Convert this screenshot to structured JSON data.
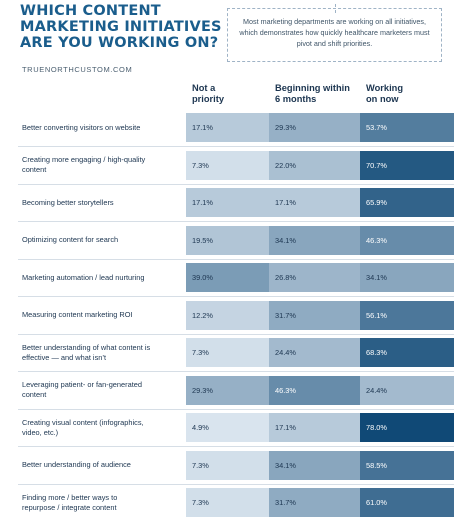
{
  "title_lines": [
    "WHICH CONTENT",
    "MARKETING INITIATIVES",
    "ARE YOU WORKING ON?"
  ],
  "callout": "Most marketing departments are working on all initiatives, which demonstrates how quickly healthcare marketers must pivot and shift priorities.",
  "source": "TRUENORTHCUSTOM.COM",
  "chart_data": {
    "type": "table",
    "columns": [
      {
        "lines": [
          "Not a",
          "priority"
        ]
      },
      {
        "lines": [
          "Beginning within",
          "6 months"
        ]
      },
      {
        "lines": [
          "Working",
          "on now"
        ]
      }
    ],
    "rows": [
      {
        "label": [
          "Better converting visitors on website"
        ],
        "values": [
          17.1,
          29.3,
          53.7
        ]
      },
      {
        "label": [
          "Creating more engaging / high-quality",
          "content"
        ],
        "values": [
          7.3,
          22.0,
          70.7
        ]
      },
      {
        "label": [
          "Becoming better storytellers"
        ],
        "values": [
          17.1,
          17.1,
          65.9
        ]
      },
      {
        "label": [
          "Optimizing content for search"
        ],
        "values": [
          19.5,
          34.1,
          46.3
        ]
      },
      {
        "label": [
          "Marketing automation / lead nurturing"
        ],
        "values": [
          39.0,
          26.8,
          34.1
        ]
      },
      {
        "label": [
          "Measuring content marketing ROI"
        ],
        "values": [
          12.2,
          31.7,
          56.1
        ]
      },
      {
        "label": [
          "Better understanding of what content is",
          "effective — and what isn’t"
        ],
        "values": [
          7.3,
          24.4,
          68.3
        ]
      },
      {
        "label": [
          "Leveraging patient- or fan-generated",
          "content"
        ],
        "values": [
          29.3,
          46.3,
          24.4
        ]
      },
      {
        "label": [
          "Creating visual content (infographics,",
          "video, etc.)"
        ],
        "values": [
          4.9,
          17.1,
          78.0
        ]
      },
      {
        "label": [
          "Better understanding of audience"
        ],
        "values": [
          7.3,
          34.1,
          58.5
        ]
      },
      {
        "label": [
          "Finding more / better ways to",
          "repurpose / integrate content"
        ],
        "values": [
          7.3,
          31.7,
          61.0
        ]
      }
    ],
    "value_format": "%",
    "colors": {
      "light": "#e6eef6",
      "dark": "#0b4573"
    }
  }
}
